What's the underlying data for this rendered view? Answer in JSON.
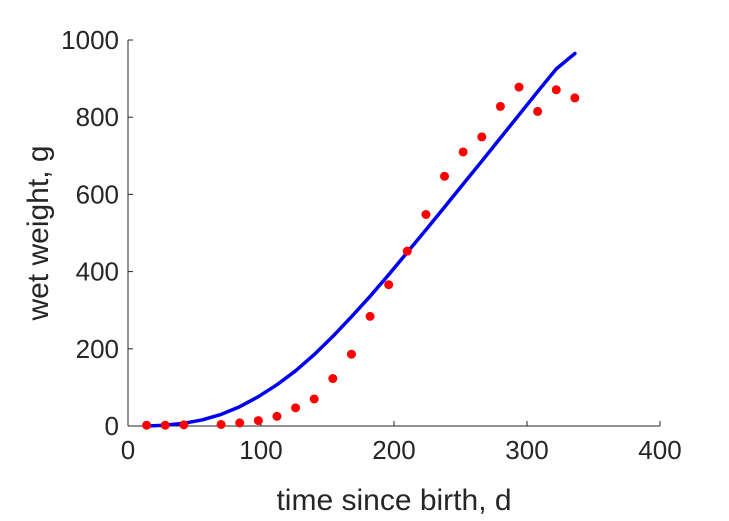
{
  "chart_data": {
    "type": "scatter",
    "title": "",
    "xlabel": "time since birth, d",
    "ylabel": "wet weight, g",
    "xlim": [
      0,
      400
    ],
    "ylim": [
      0,
      1000
    ],
    "xticks": [
      0,
      100,
      200,
      300,
      400
    ],
    "yticks": [
      0,
      200,
      400,
      600,
      800,
      1000
    ],
    "grid": false,
    "legend": "none",
    "series": [
      {
        "kind": "points",
        "color": "#ff0000",
        "x": [
          14,
          28,
          42,
          70,
          84,
          98,
          112,
          126,
          140,
          154,
          168,
          182,
          196,
          210,
          224,
          238,
          252,
          266,
          280,
          294,
          308,
          322,
          336
        ],
        "y": [
          2,
          2,
          3,
          4,
          8,
          14,
          25,
          47,
          70,
          123,
          186,
          284,
          366,
          453,
          548,
          647,
          710,
          749,
          828,
          878,
          815,
          871,
          850
        ]
      },
      {
        "kind": "line",
        "color": "#0000ee",
        "x": [
          14,
          28,
          42,
          56,
          70,
          84,
          98,
          112,
          126,
          140,
          154,
          168,
          182,
          196,
          210,
          224,
          238,
          252,
          266,
          280,
          294,
          308,
          322,
          336
        ],
        "y": [
          0,
          2,
          7,
          16,
          30,
          50,
          76,
          107,
          143,
          185,
          232,
          283,
          336,
          392,
          450,
          508,
          567,
          627,
          686,
          746,
          806,
          866,
          925,
          965
        ]
      }
    ]
  }
}
